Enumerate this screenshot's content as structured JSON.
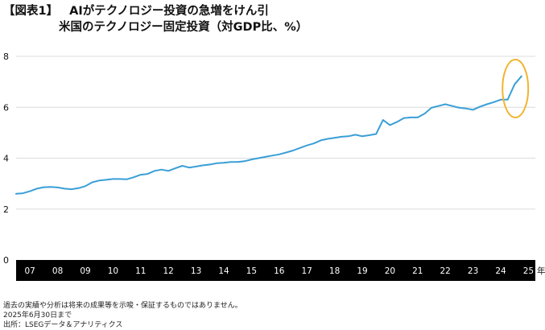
{
  "header": {
    "figure_label": "【図表1】",
    "title": "AIがテクノロジー投資の急増をけん引",
    "subtitle": "米国のテクノロジー固定投資（対GDP比、%）"
  },
  "chart_data": {
    "type": "line",
    "title": "米国のテクノロジー固定投資（対GDP比、%）",
    "xlabel": "",
    "ylabel": "",
    "x_unit": "年",
    "ylim": [
      0,
      8
    ],
    "yticks": [
      "0",
      "2",
      "4",
      "6",
      "8"
    ],
    "xticks": [
      "07",
      "08",
      "09",
      "10",
      "11",
      "12",
      "13",
      "14",
      "15",
      "16",
      "17",
      "18",
      "19",
      "20",
      "21",
      "22",
      "23",
      "24",
      "25"
    ],
    "grid": "horizontal",
    "colors": {
      "line": "#3a9fd6",
      "highlight_circle": "#f2b430",
      "axis_band": "#000000"
    },
    "annotation": "circle highlighting the 2025 surge",
    "series": [
      {
        "values": [
          [
            2007.0,
            2.6
          ],
          [
            2007.25,
            2.62
          ],
          [
            2007.5,
            2.7
          ],
          [
            2007.75,
            2.8
          ],
          [
            2008.0,
            2.86
          ],
          [
            2008.25,
            2.87
          ],
          [
            2008.5,
            2.85
          ],
          [
            2008.75,
            2.8
          ],
          [
            2009.0,
            2.78
          ],
          [
            2009.25,
            2.82
          ],
          [
            2009.5,
            2.9
          ],
          [
            2009.75,
            3.05
          ],
          [
            2010.0,
            3.12
          ],
          [
            2010.25,
            3.15
          ],
          [
            2010.5,
            3.18
          ],
          [
            2010.75,
            3.18
          ],
          [
            2011.0,
            3.17
          ],
          [
            2011.25,
            3.25
          ],
          [
            2011.5,
            3.35
          ],
          [
            2011.75,
            3.38
          ],
          [
            2012.0,
            3.5
          ],
          [
            2012.25,
            3.55
          ],
          [
            2012.5,
            3.5
          ],
          [
            2012.75,
            3.6
          ],
          [
            2013.0,
            3.7
          ],
          [
            2013.25,
            3.63
          ],
          [
            2013.5,
            3.67
          ],
          [
            2013.75,
            3.72
          ],
          [
            2014.0,
            3.75
          ],
          [
            2014.25,
            3.8
          ],
          [
            2014.5,
            3.82
          ],
          [
            2014.75,
            3.85
          ],
          [
            2015.0,
            3.85
          ],
          [
            2015.25,
            3.88
          ],
          [
            2015.5,
            3.95
          ],
          [
            2015.75,
            4.0
          ],
          [
            2016.0,
            4.05
          ],
          [
            2016.25,
            4.1
          ],
          [
            2016.5,
            4.15
          ],
          [
            2016.75,
            4.22
          ],
          [
            2017.0,
            4.3
          ],
          [
            2017.25,
            4.4
          ],
          [
            2017.5,
            4.5
          ],
          [
            2017.75,
            4.58
          ],
          [
            2018.0,
            4.7
          ],
          [
            2018.25,
            4.76
          ],
          [
            2018.5,
            4.8
          ],
          [
            2018.75,
            4.84
          ],
          [
            2019.0,
            4.86
          ],
          [
            2019.25,
            4.92
          ],
          [
            2019.5,
            4.86
          ],
          [
            2019.75,
            4.9
          ],
          [
            2020.0,
            4.95
          ],
          [
            2020.25,
            5.5
          ],
          [
            2020.5,
            5.3
          ],
          [
            2020.75,
            5.42
          ],
          [
            2021.0,
            5.57
          ],
          [
            2021.25,
            5.6
          ],
          [
            2021.5,
            5.6
          ],
          [
            2021.75,
            5.75
          ],
          [
            2022.0,
            5.98
          ],
          [
            2022.25,
            6.05
          ],
          [
            2022.5,
            6.12
          ],
          [
            2022.75,
            6.05
          ],
          [
            2023.0,
            5.98
          ],
          [
            2023.25,
            5.95
          ],
          [
            2023.5,
            5.9
          ],
          [
            2023.75,
            6.02
          ],
          [
            2024.0,
            6.12
          ],
          [
            2024.25,
            6.2
          ],
          [
            2024.5,
            6.3
          ],
          [
            2024.75,
            6.3
          ],
          [
            2025.0,
            6.9
          ],
          [
            2025.25,
            7.22
          ]
        ]
      }
    ]
  },
  "footer": {
    "disclaimer": "過去の実績や分析は将来の成果等を示唆・保証するものではありません。",
    "date_note": "2025年6月30日まで",
    "source": "出所：LSEGデータ＆アナリティクス"
  }
}
